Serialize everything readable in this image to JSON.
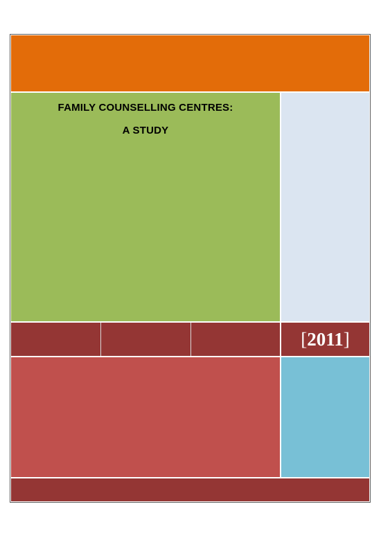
{
  "cover": {
    "title_line1": "FAMILY COUNSELLING CENTRES:",
    "title_line2": "A STUDY",
    "year": "2011",
    "bracket_open": "[",
    "bracket_close": "]"
  },
  "colors": {
    "orange": "#e36c09",
    "green": "#9bbb59",
    "light_blue": "#dbe5f1",
    "dark_red": "#943634",
    "red": "#c0504d",
    "cyan": "#78c0d6"
  }
}
